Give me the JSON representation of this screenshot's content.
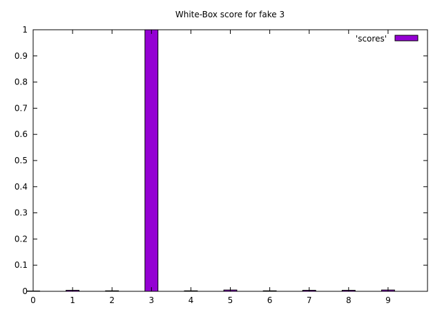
{
  "chart_data": {
    "type": "bar",
    "title": "White-Box score for fake 3",
    "xlabel": "",
    "ylabel": "",
    "x": [
      0,
      1,
      2,
      3,
      4,
      5,
      6,
      7,
      8,
      9
    ],
    "series": [
      {
        "name": "'scores'",
        "values": [
          0.0008,
          0.004,
          0.002,
          1.0,
          0.002,
          0.005,
          0.002,
          0.004,
          0.004,
          0.005
        ]
      }
    ],
    "xlim": [
      0,
      10
    ],
    "ylim": [
      0,
      1
    ],
    "xticks": [
      "0",
      "1",
      "2",
      "3",
      "4",
      "5",
      "6",
      "7",
      "8",
      "9"
    ],
    "yticks": [
      "0",
      "0.1",
      "0.2",
      "0.3",
      "0.4",
      "0.5",
      "0.6",
      "0.7",
      "0.8",
      "0.9",
      "1"
    ],
    "grid": false,
    "legend_position": "top-right",
    "bar_color": "#9400D3"
  }
}
